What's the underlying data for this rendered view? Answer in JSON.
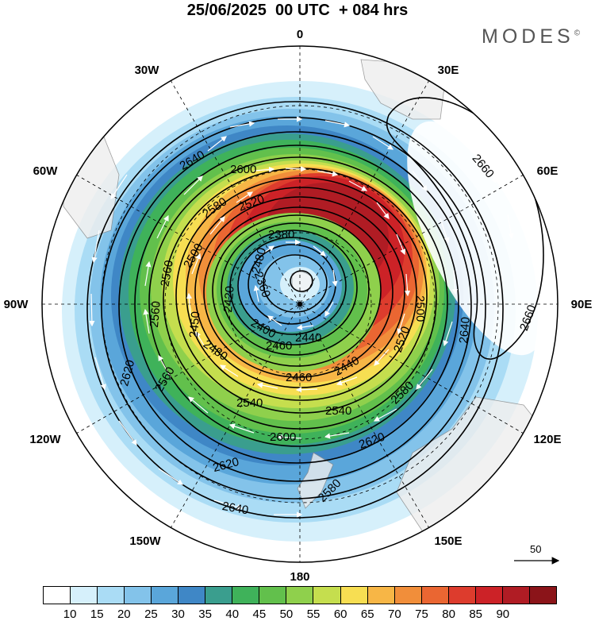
{
  "title": "25/06/2025  00 UTC  + 084 hrs",
  "brand": "MODES",
  "brand_mark": "©",
  "longitude_labels": {
    "lon_0": "0",
    "lon_30e": "30E",
    "lon_60e": "60E",
    "lon_90e": "90E",
    "lon_120e": "120E",
    "lon_150e": "150E",
    "lon_180": "180",
    "lon_150w": "150W",
    "lon_120w": "120W",
    "lon_90w": "90W",
    "lon_60w": "60W",
    "lon_30w": "30W"
  },
  "contour_labels": [
    "2640",
    "2600",
    "2580",
    "2560",
    "2520",
    "2500",
    "2460",
    "2440",
    "2420",
    "2400",
    "2380",
    "2360",
    "2450",
    "2480",
    "2540",
    "2620",
    "2660",
    "2500",
    "2520",
    "2560",
    "2580",
    "2640",
    "2620",
    "2600",
    "2540",
    "2560",
    "2480",
    "2440",
    "2460",
    "2620",
    "2640",
    "2660",
    "2580"
  ],
  "colorbar": {
    "colors": [
      "#ffffff",
      "#d6f0fb",
      "#aadcf5",
      "#83c3ea",
      "#5aa6da",
      "#3f87c6",
      "#3a9e8e",
      "#3fb25a",
      "#62c04c",
      "#8fd04c",
      "#c5de4e",
      "#f7de52",
      "#f7b646",
      "#f18e3a",
      "#ea6632",
      "#dd3c2d",
      "#cc2227",
      "#b01c24",
      "#8b1419"
    ],
    "ticks": [
      "10",
      "15",
      "20",
      "25",
      "30",
      "35",
      "40",
      "45",
      "50",
      "55",
      "60",
      "65",
      "70",
      "75",
      "80",
      "85",
      "90"
    ]
  },
  "reference_vector": {
    "value": "50"
  }
}
